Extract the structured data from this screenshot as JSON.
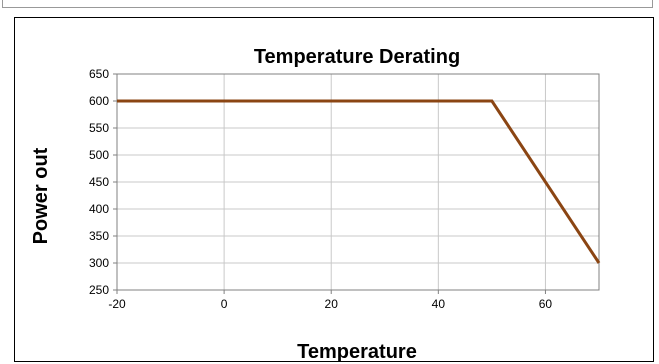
{
  "chart_data": {
    "type": "line",
    "title": "Temperature Derating",
    "xlabel": "Temperature",
    "ylabel": "Power out",
    "xlim": [
      -20,
      70
    ],
    "ylim": [
      250,
      650
    ],
    "xticks": [
      -20,
      0,
      20,
      40,
      60
    ],
    "yticks": [
      250,
      300,
      350,
      400,
      450,
      500,
      550,
      600,
      650
    ],
    "grid": true,
    "legend": "none",
    "series": [
      {
        "color": "#8B4513",
        "x": [
          -20,
          50,
          70
        ],
        "y": [
          600,
          600,
          300
        ]
      }
    ]
  }
}
